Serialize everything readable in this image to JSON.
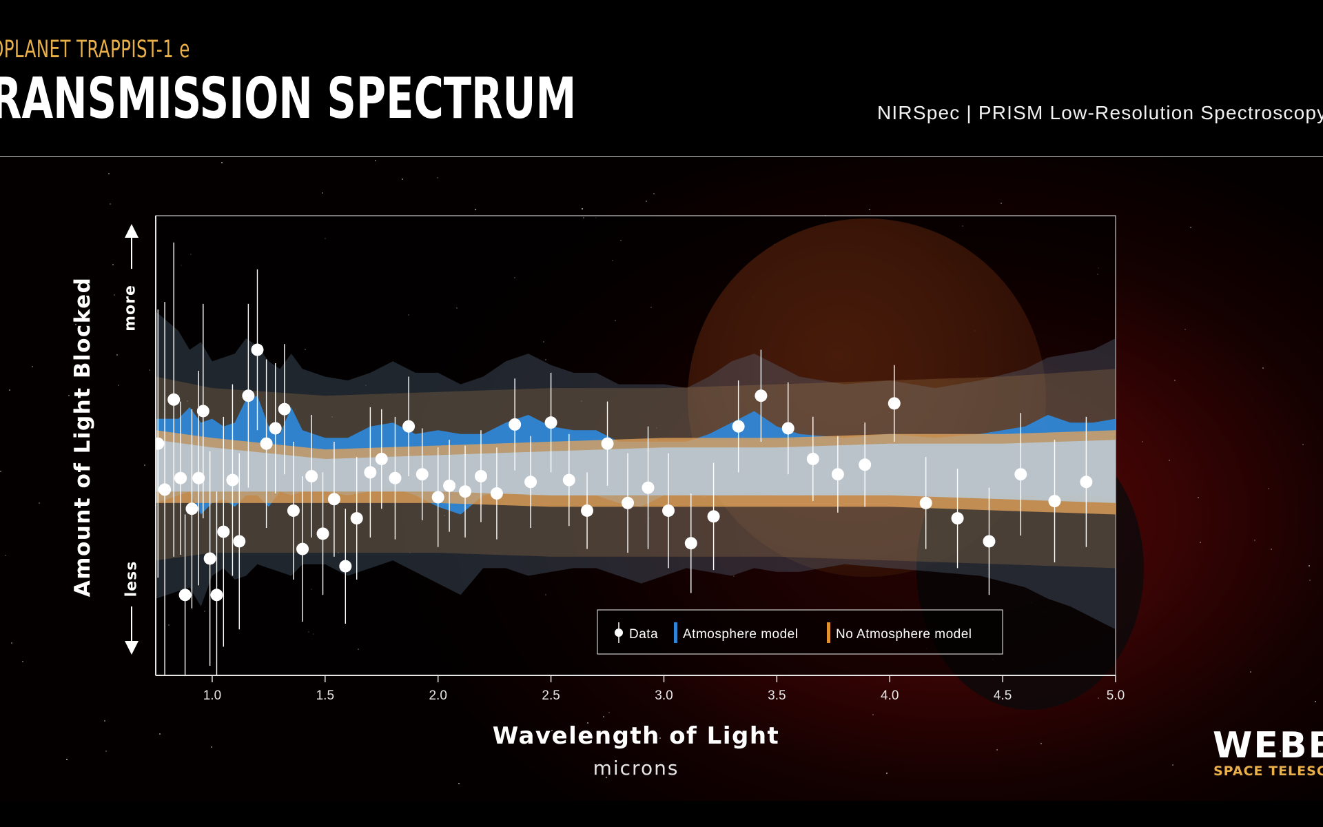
{
  "header": {
    "kicker": "OPLANET TRAPPIST-1 e",
    "title": "RANSMISSION SPECTRUM",
    "instrument": "NIRSpec | PRISM Low-Resolution Spectroscopy"
  },
  "branding": {
    "logo": "WEBB",
    "subtitle": "SPACE TELESCOPE"
  },
  "colors": {
    "accent_gold": "#e9b04a",
    "atmosphere_blue": "#2f86d6",
    "no_atmosphere_orange": "#e3902e",
    "data_white": "#ffffff"
  },
  "chart_data": {
    "type": "scatter",
    "title": "",
    "xlabel": "Wavelength of Light",
    "xunit": "microns",
    "ylabel": "Amount of Light Blocked",
    "y_high_label": "more",
    "y_low_label": "less",
    "xlim": [
      0.75,
      5.0
    ],
    "ylim": [
      -6,
      6
    ],
    "y_ticks_shown": false,
    "x_ticks": [
      1.0,
      1.5,
      2.0,
      2.5,
      3.0,
      3.5,
      4.0,
      4.5,
      5.0
    ],
    "x_tick_labels": [
      "1.0",
      "1.5",
      "2.0",
      "2.5",
      "3.0",
      "3.5",
      "4.0",
      "4.5",
      "5.0"
    ],
    "legend": {
      "placement": "bottom-right",
      "entries": [
        "Data",
        "Atmosphere model",
        "No Atmosphere model"
      ]
    },
    "grid": false,
    "series": [
      {
        "name": "Data",
        "kind": "points_with_errorbars",
        "x": [
          0.76,
          0.79,
          0.83,
          0.86,
          0.88,
          0.91,
          0.94,
          0.96,
          0.99,
          1.02,
          1.05,
          1.09,
          1.12,
          1.16,
          1.2,
          1.24,
          1.28,
          1.32,
          1.36,
          1.4,
          1.44,
          1.49,
          1.54,
          1.59,
          1.64,
          1.7,
          1.75,
          1.81,
          1.87,
          1.93,
          2.0,
          2.05,
          2.12,
          2.19,
          2.26,
          2.34,
          2.41,
          2.5,
          2.58,
          2.66,
          2.75,
          2.84,
          2.93,
          3.02,
          3.12,
          3.22,
          3.33,
          3.43,
          3.55,
          3.66,
          3.77,
          3.89,
          4.02,
          4.16,
          4.3,
          4.44,
          4.58,
          4.73,
          4.87
        ],
        "y": [
          0.05,
          -1.15,
          1.2,
          -0.85,
          -3.9,
          -1.65,
          -0.85,
          0.9,
          -2.95,
          -3.9,
          -2.25,
          -0.9,
          -2.5,
          1.3,
          2.5,
          0.05,
          0.45,
          0.95,
          -1.7,
          -2.7,
          -0.8,
          -2.3,
          -1.4,
          -3.15,
          -1.9,
          -0.7,
          -0.35,
          -0.85,
          0.5,
          -0.75,
          -1.35,
          -1.05,
          -1.2,
          -0.8,
          -1.25,
          0.55,
          -0.95,
          0.6,
          -0.9,
          -1.7,
          0.05,
          -1.5,
          -1.1,
          -1.7,
          -2.55,
          -1.85,
          0.5,
          1.3,
          0.45,
          -0.35,
          -0.75,
          -0.5,
          1.1,
          -1.5,
          -1.9,
          -2.5,
          -0.75,
          -1.45,
          -0.95
        ],
        "error": [
          3.5,
          4.9,
          4.1,
          2.0,
          2.1,
          2.6,
          2.8,
          2.8,
          2.8,
          2.7,
          3.0,
          2.5,
          2.3,
          2.4,
          2.1,
          2.2,
          1.7,
          1.7,
          1.8,
          1.9,
          1.6,
          1.6,
          1.5,
          1.5,
          1.6,
          1.7,
          1.3,
          1.6,
          1.3,
          1.2,
          1.3,
          1.2,
          1.2,
          1.2,
          1.2,
          1.2,
          1.2,
          1.3,
          1.2,
          1.0,
          1.1,
          1.3,
          1.6,
          1.5,
          1.3,
          1.4,
          1.2,
          1.2,
          1.2,
          1.1,
          1.0,
          1.1,
          1.0,
          1.2,
          1.3,
          1.4,
          1.6,
          1.6,
          1.7
        ]
      },
      {
        "name": "Atmosphere model",
        "kind": "band",
        "x": [
          0.75,
          0.85,
          0.9,
          0.95,
          1.0,
          1.05,
          1.1,
          1.15,
          1.2,
          1.25,
          1.3,
          1.35,
          1.4,
          1.5,
          1.6,
          1.7,
          1.8,
          1.9,
          2.0,
          2.1,
          2.2,
          2.3,
          2.4,
          2.5,
          2.6,
          2.7,
          2.8,
          2.9,
          3.0,
          3.1,
          3.2,
          3.3,
          3.4,
          3.5,
          3.6,
          3.8,
          4.0,
          4.2,
          4.4,
          4.6,
          4.7,
          4.8,
          4.9,
          5.0
        ],
        "upper": [
          0.7,
          0.7,
          1.0,
          0.6,
          0.7,
          0.5,
          0.6,
          1.2,
          1.3,
          0.5,
          0.3,
          1.0,
          0.4,
          0.2,
          0.2,
          0.5,
          0.6,
          0.3,
          0.4,
          0.3,
          0.3,
          0.6,
          0.8,
          0.5,
          0.4,
          0.4,
          0.1,
          0.1,
          0.1,
          0.1,
          0.3,
          0.6,
          0.9,
          0.5,
          0.3,
          0.2,
          0.3,
          0.2,
          0.3,
          0.5,
          0.8,
          0.6,
          0.6,
          0.7
        ],
        "lower": [
          -1.5,
          -1.3,
          -1.2,
          -1.8,
          -1.5,
          -1.4,
          -1.6,
          -1.3,
          -1.3,
          -1.6,
          -1.2,
          -1.3,
          -1.2,
          -1.2,
          -1.3,
          -1.2,
          -1.1,
          -1.3,
          -1.6,
          -1.8,
          -1.3,
          -1.2,
          -1.3,
          -1.3,
          -1.3,
          -1.3,
          -1.5,
          -1.6,
          -1.3,
          -1.2,
          -1.3,
          -1.3,
          -1.2,
          -1.3,
          -1.3,
          -1.2,
          -1.2,
          -1.3,
          -1.3,
          -1.3,
          -1.4,
          -1.3,
          -1.3,
          -1.4
        ],
        "outer_upper": [
          3.5,
          3.0,
          2.5,
          2.7,
          2.2,
          2.3,
          2.4,
          2.8,
          2.6,
          2.2,
          2.0,
          2.4,
          2.0,
          1.8,
          1.7,
          1.9,
          2.2,
          1.9,
          1.9,
          1.6,
          1.8,
          2.2,
          2.4,
          2.1,
          1.9,
          1.9,
          1.6,
          1.6,
          1.6,
          1.5,
          1.8,
          2.2,
          2.4,
          2.1,
          1.8,
          1.6,
          1.7,
          1.5,
          1.7,
          2.0,
          2.3,
          2.4,
          2.5,
          2.8
        ],
        "outer_lower": [
          -4.0,
          -3.8,
          -3.7,
          -4.2,
          -3.4,
          -3.2,
          -3.5,
          -3.4,
          -3.1,
          -3.2,
          -3.3,
          -3.4,
          -3.1,
          -3.1,
          -3.4,
          -3.2,
          -3.0,
          -3.3,
          -3.6,
          -3.9,
          -3.2,
          -3.2,
          -3.4,
          -3.3,
          -3.2,
          -3.2,
          -3.4,
          -3.6,
          -3.4,
          -3.2,
          -3.3,
          -3.4,
          -3.2,
          -3.3,
          -3.3,
          -3.1,
          -3.2,
          -3.3,
          -3.4,
          -3.7,
          -4.0,
          -4.2,
          -4.5,
          -4.8
        ]
      },
      {
        "name": "No Atmosphere model",
        "kind": "band",
        "x": [
          0.75,
          1.0,
          1.5,
          2.0,
          2.5,
          3.0,
          3.5,
          4.0,
          4.5,
          5.0
        ],
        "upper": [
          0.4,
          0.2,
          -0.1,
          0.0,
          0.1,
          0.2,
          0.2,
          0.3,
          0.3,
          0.4
        ],
        "lower": [
          -1.5,
          -1.5,
          -1.5,
          -1.5,
          -1.6,
          -1.6,
          -1.6,
          -1.6,
          -1.7,
          -1.8
        ],
        "outer_upper": [
          1.8,
          1.5,
          1.3,
          1.4,
          1.5,
          1.5,
          1.6,
          1.7,
          1.8,
          2.0
        ],
        "outer_lower": [
          -3.0,
          -2.8,
          -2.8,
          -2.8,
          -2.9,
          -2.9,
          -2.9,
          -3.0,
          -3.1,
          -3.2
        ]
      }
    ]
  }
}
